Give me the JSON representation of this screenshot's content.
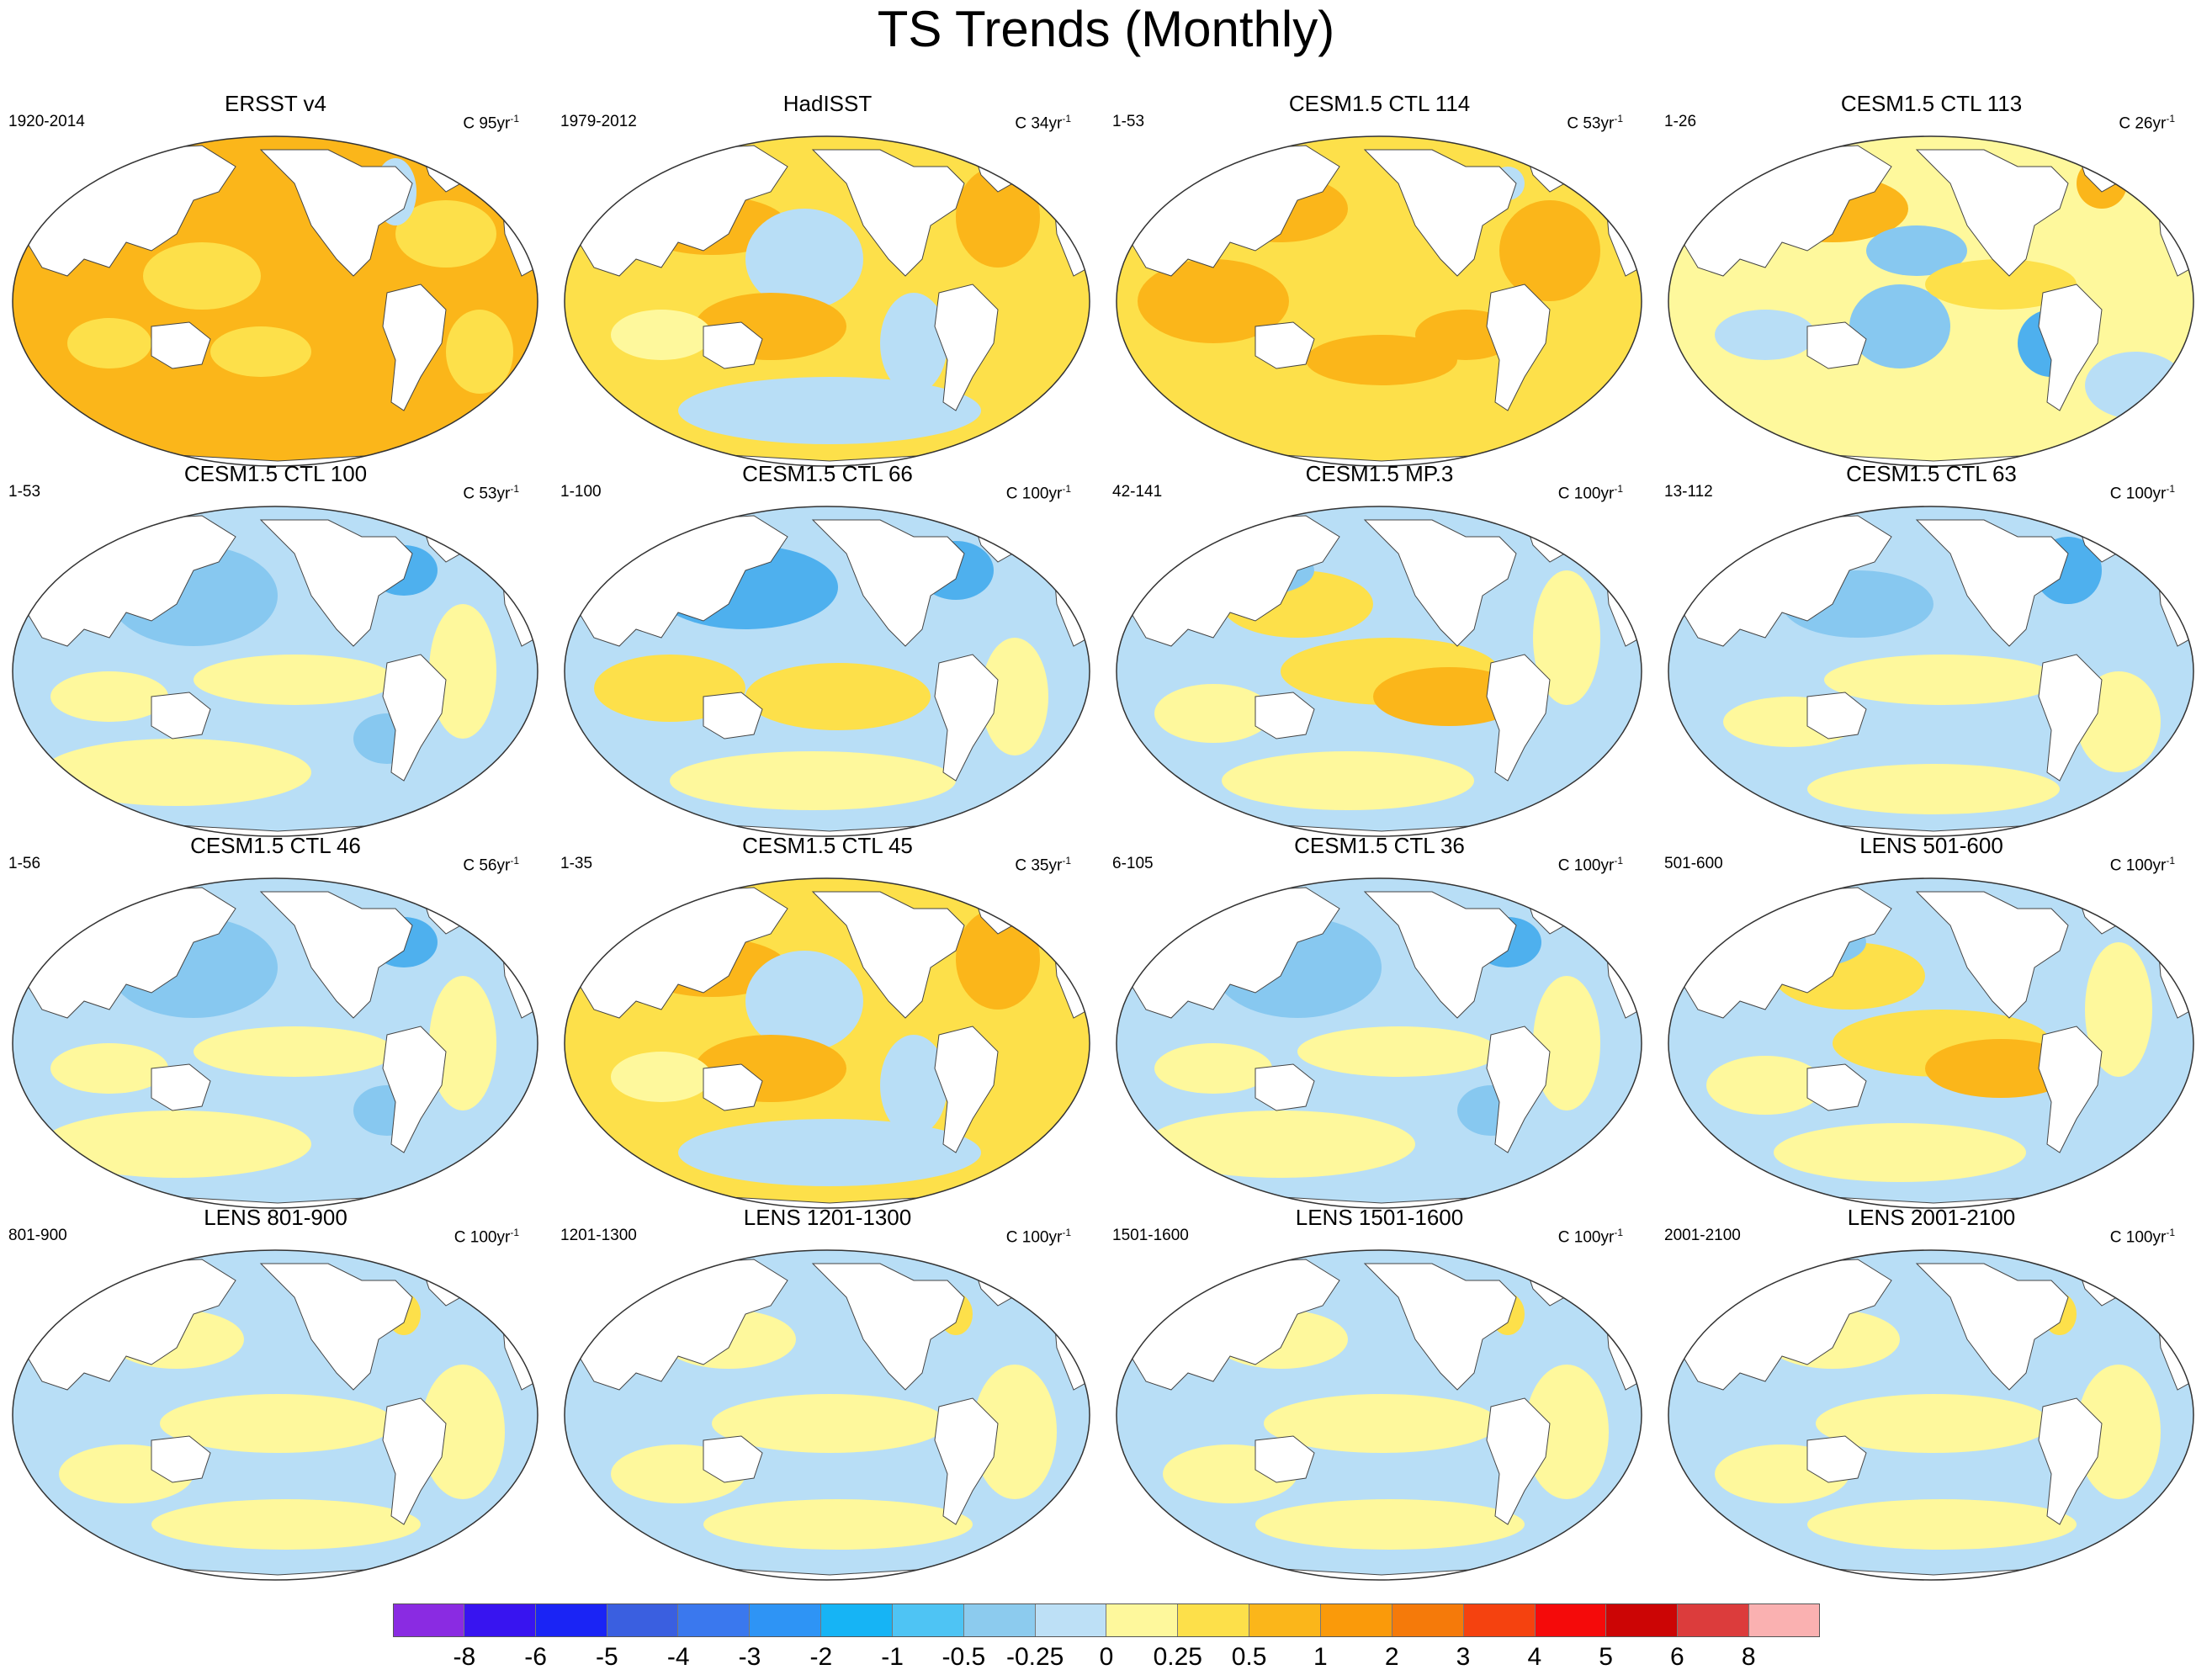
{
  "title": "TS Trends (Monthly)",
  "colors": {
    "ocean_warm": "#fbb61a",
    "ocean_mild": "#fde04a",
    "ocean_light_yellow": "#fef89c",
    "ocean_light_blue": "#b8def6",
    "ocean_blue": "#87c8f0",
    "ocean_blue2": "#4eb0ee",
    "land": "#ffffff",
    "coast": "#444444"
  },
  "panels": [
    {
      "title": "ERSST v4",
      "period": "1920-2014",
      "contour_prefix": "C",
      "contour_value": "95yr",
      "contour_exp": "-1",
      "pattern": "warm"
    },
    {
      "title": "HadISST",
      "period": "1979-2012",
      "contour_prefix": "C",
      "contour_value": "34yr",
      "contour_exp": "-1",
      "pattern": "pdo"
    },
    {
      "title": "CESM1.5 CTL 114",
      "period": "1-53",
      "contour_prefix": "C",
      "contour_value": "53yr",
      "contour_exp": "-1",
      "pattern": "warm2"
    },
    {
      "title": "CESM1.5 CTL 113",
      "period": "1-26",
      "contour_prefix": "C",
      "contour_value": "26yr",
      "contour_exp": "-1",
      "pattern": "mixed_warm"
    },
    {
      "title": "CESM1.5 CTL 100",
      "period": "1-53",
      "contour_prefix": "C",
      "contour_value": "53yr",
      "contour_exp": "-1",
      "pattern": "cool"
    },
    {
      "title": "CESM1.5 CTL 66",
      "period": "1-100",
      "contour_prefix": "C",
      "contour_value": "100yr",
      "contour_exp": "-1",
      "pattern": "cool_pdo"
    },
    {
      "title": "CESM1.5 MP.3",
      "period": "42-141",
      "contour_prefix": "C",
      "contour_value": "100yr",
      "contour_exp": "-1",
      "pattern": "enso_warm"
    },
    {
      "title": "CESM1.5 CTL 63",
      "period": "13-112",
      "contour_prefix": "C",
      "contour_value": "100yr",
      "contour_exp": "-1",
      "pattern": "cool_light"
    },
    {
      "title": "CESM1.5 CTL 46",
      "period": "1-56",
      "contour_prefix": "C",
      "contour_value": "56yr",
      "contour_exp": "-1",
      "pattern": "cool"
    },
    {
      "title": "CESM1.5 CTL 45",
      "period": "1-35",
      "contour_prefix": "C",
      "contour_value": "35yr",
      "contour_exp": "-1",
      "pattern": "pdo"
    },
    {
      "title": "CESM1.5 CTL 36",
      "period": "6-105",
      "contour_prefix": "C",
      "contour_value": "100yr",
      "contour_exp": "-1",
      "pattern": "cool"
    },
    {
      "title": "LENS 501-600",
      "period": "501-600",
      "contour_prefix": "C",
      "contour_value": "100yr",
      "contour_exp": "-1",
      "pattern": "enso_warm"
    },
    {
      "title": "LENS 801-900",
      "period": "801-900",
      "contour_prefix": "C",
      "contour_value": "100yr",
      "contour_exp": "-1",
      "pattern": "light"
    },
    {
      "title": "LENS 1201-1300",
      "period": "1201-1300",
      "contour_prefix": "C",
      "contour_value": "100yr",
      "contour_exp": "-1",
      "pattern": "light"
    },
    {
      "title": "LENS 1501-1600",
      "period": "1501-1600",
      "contour_prefix": "C",
      "contour_value": "100yr",
      "contour_exp": "-1",
      "pattern": "light"
    },
    {
      "title": "LENS 2001-2100",
      "period": "2001-2100",
      "contour_prefix": "C",
      "contour_value": "100yr",
      "contour_exp": "-1",
      "pattern": "light"
    }
  ],
  "colorbar": {
    "colors": [
      "#8a2be2",
      "#3814f0",
      "#1a24f5",
      "#3a5fe0",
      "#3a78ee",
      "#2e94f5",
      "#16b4f5",
      "#4ec4f4",
      "#8ccbee",
      "#bde0f6",
      "#fef89c",
      "#fde04a",
      "#fbb61a",
      "#fa9a0a",
      "#f57a0a",
      "#f5420f",
      "#f50a0a",
      "#cc0505",
      "#dc3c3c",
      "#fab1b1"
    ],
    "labels": [
      "-8",
      "-6",
      "-5",
      "-4",
      "-3",
      "-2",
      "-1",
      "-0.5",
      "-0.25",
      "0",
      "0.25",
      "0.5",
      "1",
      "2",
      "3",
      "4",
      "5",
      "6",
      "8"
    ]
  }
}
